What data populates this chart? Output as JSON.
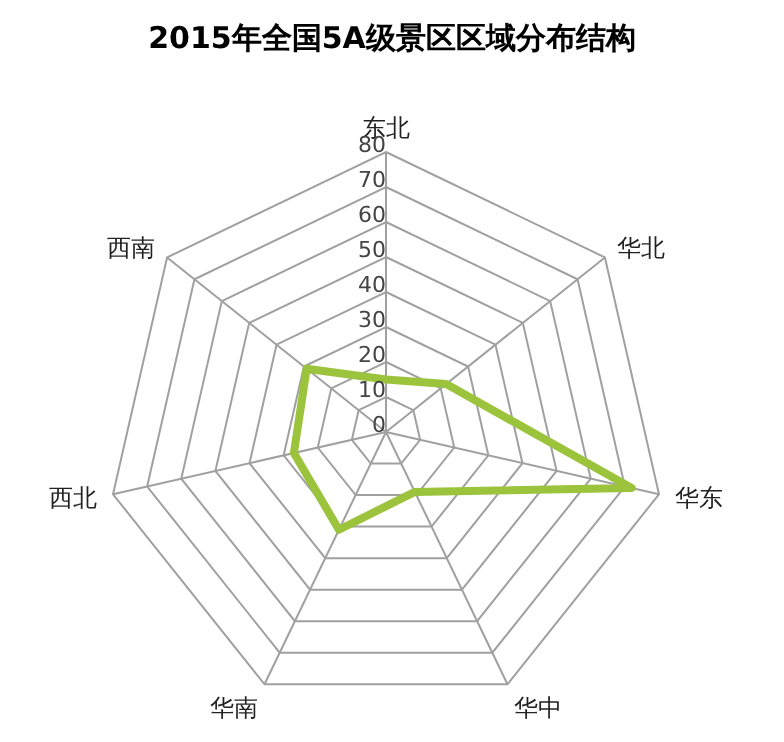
{
  "chart_data": {
    "type": "radar",
    "title": "2015年全国5A级景区区域分布结构",
    "categories": [
      "东北",
      "华北",
      "华东",
      "华中",
      "华南",
      "西北",
      "西南"
    ],
    "series": [
      {
        "color": "#9bc43c",
        "values": [
          15,
          22,
          72,
          19,
          31,
          27,
          29
        ]
      }
    ],
    "ylim": [
      0,
      80
    ],
    "yticks": [
      0,
      10,
      20,
      30,
      40,
      50,
      60,
      70,
      80
    ],
    "grid": true,
    "legend": false,
    "marker": "none"
  }
}
